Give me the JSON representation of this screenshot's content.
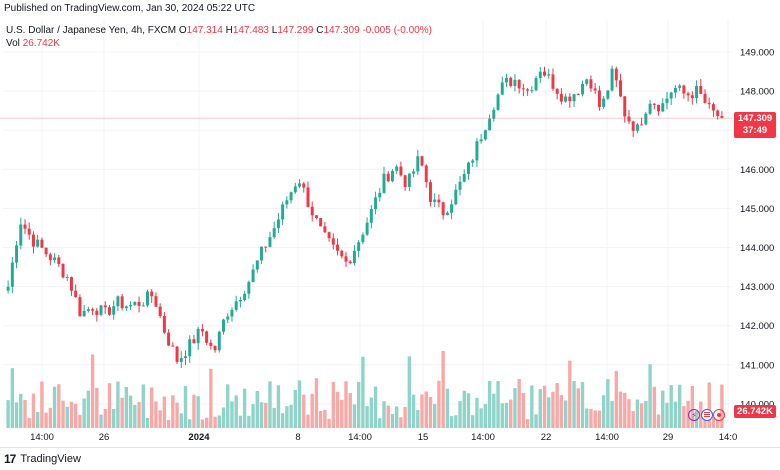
{
  "header": {
    "published": "Published on TradingView.com, Jan 30, 2024 05:22 UTC"
  },
  "legend": {
    "symbol": "U.S. Dollar / Japanese Yen, 4h, FXCM",
    "o_label": "O",
    "o_value": "147.314",
    "h_label": "H",
    "h_value": "147.483",
    "l_label": "L",
    "l_value": "147.299",
    "c_label": "C",
    "c_value": "147.309",
    "change": "-0.005 (-0.00%)",
    "vol_label": "Vol",
    "vol_value": "26.742K"
  },
  "price_axis": {
    "labels": [
      "149.000",
      "148.000",
      "147.000",
      "146.000",
      "145.000",
      "144.000",
      "143.000",
      "142.000",
      "141.000",
      "140.000"
    ],
    "last_price": "147.309",
    "countdown": "37:49",
    "volume_label": "26.742K"
  },
  "time_axis": {
    "labels": [
      "14:00",
      "26",
      "2024",
      "8",
      "14:00",
      "15",
      "14:00",
      "22",
      "14:00",
      "29",
      "14:0"
    ]
  },
  "footer": {
    "brand": "TradingView",
    "brand_mark": "17"
  },
  "colors": {
    "up": "#22ab94",
    "down": "#f23645",
    "vol_up": "#8fd3c9",
    "vol_down": "#f7a9a7",
    "grid": "#f0f3fa"
  },
  "chart_data": {
    "type": "candlestick",
    "title": "U.S. Dollar / Japanese Yen, 4h, FXCM",
    "ylim": [
      139.7,
      149.6
    ],
    "close_path": [
      143.0,
      144.7,
      144.2,
      143.9,
      143.6,
      143.2,
      142.3,
      142.5,
      142.3,
      142.6,
      142.5,
      142.6,
      142.8,
      141.8,
      141.1,
      141.5,
      141.9,
      141.3,
      142.3,
      142.7,
      143.2,
      143.9,
      144.5,
      145.2,
      145.8,
      145.0,
      144.3,
      143.9,
      143.6,
      144.2,
      144.9,
      145.7,
      146.1,
      145.6,
      146.3,
      145.2,
      144.9,
      145.4,
      146.0,
      146.8,
      147.6,
      148.2,
      148.3,
      148.0,
      148.6,
      148.2,
      147.8,
      148.0,
      148.4,
      147.5,
      148.5,
      147.4,
      147.0,
      147.8,
      147.6,
      148.1,
      147.9,
      148.0,
      147.5,
      147.309
    ],
    "last_close": 147.309,
    "volume_last": "26.742K"
  }
}
